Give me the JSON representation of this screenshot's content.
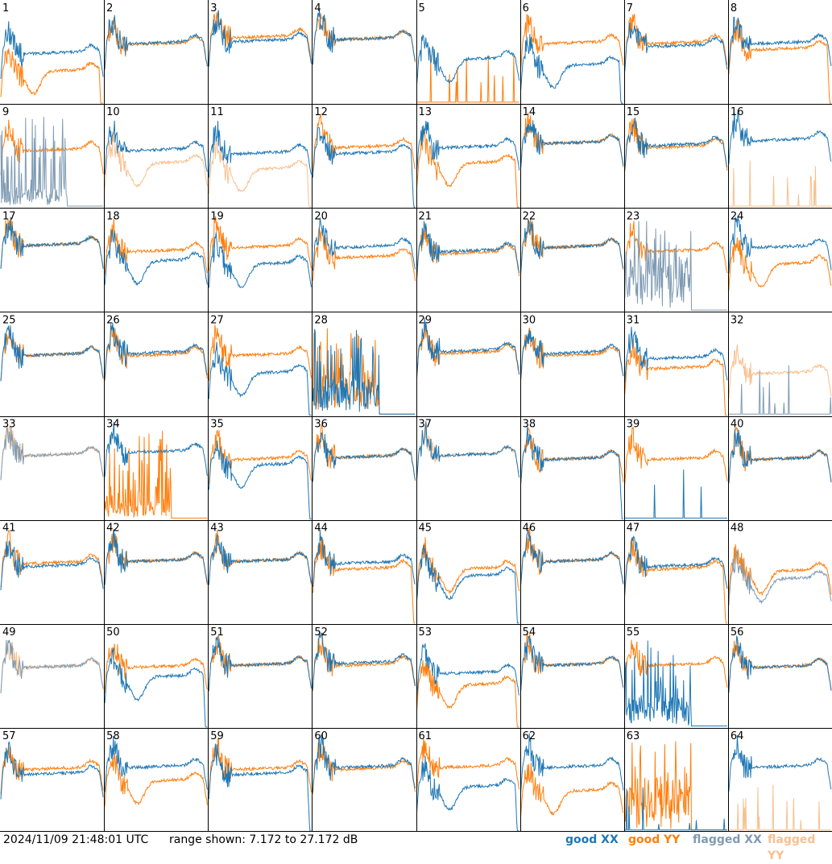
{
  "footer": {
    "timestamp": "2024/11/09 21:48:01 UTC",
    "range_text": "range shown: 7.172 to 27.172 dB"
  },
  "legend": {
    "good_xx": "good XX",
    "good_yy": "good YY",
    "flagged_xx": "flagged XX",
    "flagged_yy": "flagged YY"
  },
  "colors": {
    "good_xx": "#1f77b4",
    "good_yy": "#ff7f0e",
    "flagged_xx": "#7f9bb3",
    "flagged_yy": "#f7c08f",
    "grid_line": "#000000"
  },
  "chart_data": {
    "type": "line",
    "grid": "8x8 small multiples",
    "ylim": [
      7.172,
      27.172
    ],
    "y_unit": "dB",
    "panels": [
      {
        "id": 1,
        "xx": {
          "shape": "normal",
          "level": 0.48,
          "status": "good"
        },
        "yy": {
          "shape": "dip",
          "level": 0.3,
          "status": "good",
          "end": "dropoff"
        }
      },
      {
        "id": 2,
        "xx": {
          "shape": "normal",
          "level": 0.58,
          "status": "good"
        },
        "yy": {
          "shape": "normal",
          "level": 0.57,
          "status": "good"
        }
      },
      {
        "id": 3,
        "xx": {
          "shape": "normal",
          "level": 0.6,
          "status": "good"
        },
        "yy": {
          "shape": "normal",
          "level": 0.64,
          "status": "good"
        }
      },
      {
        "id": 4,
        "xx": {
          "shape": "normal",
          "level": 0.62,
          "status": "good"
        },
        "yy": {
          "shape": "normal",
          "level": 0.62,
          "status": "good"
        }
      },
      {
        "id": 5,
        "xx": {
          "shape": "dip",
          "level": 0.42,
          "status": "good"
        },
        "yy": {
          "shape": "dead",
          "level": 0.02,
          "status": "good"
        }
      },
      {
        "id": 6,
        "xx": {
          "shape": "dip",
          "level": 0.36,
          "status": "good",
          "end": "dropoff"
        },
        "yy": {
          "shape": "normal",
          "level": 0.58,
          "status": "good"
        }
      },
      {
        "id": 7,
        "xx": {
          "shape": "normal",
          "level": 0.55,
          "status": "good"
        },
        "yy": {
          "shape": "normal",
          "level": 0.58,
          "status": "good"
        }
      },
      {
        "id": 8,
        "xx": {
          "shape": "normal",
          "level": 0.58,
          "status": "good"
        },
        "yy": {
          "shape": "normal",
          "level": 0.52,
          "status": "good",
          "end": "dropoff"
        }
      },
      {
        "id": 9,
        "xx": {
          "shape": "noisy",
          "level": 0.1,
          "status": "flagged"
        },
        "yy": {
          "shape": "normal",
          "level": 0.55,
          "status": "good"
        }
      },
      {
        "id": 10,
        "xx": {
          "shape": "normal",
          "level": 0.55,
          "status": "good"
        },
        "yy": {
          "shape": "dip",
          "level": 0.42,
          "status": "flagged"
        }
      },
      {
        "id": 11,
        "xx": {
          "shape": "normal",
          "level": 0.52,
          "status": "good"
        },
        "yy": {
          "shape": "dip",
          "level": 0.36,
          "status": "flagged",
          "end": "dropoff"
        }
      },
      {
        "id": 12,
        "xx": {
          "shape": "normal",
          "level": 0.52,
          "status": "good",
          "end": "dropoff"
        },
        "yy": {
          "shape": "normal",
          "level": 0.58,
          "status": "good"
        }
      },
      {
        "id": 13,
        "xx": {
          "shape": "normal",
          "level": 0.58,
          "status": "good"
        },
        "yy": {
          "shape": "dip",
          "level": 0.42,
          "status": "good",
          "end": "dropoff"
        }
      },
      {
        "id": 14,
        "xx": {
          "shape": "normal",
          "level": 0.62,
          "status": "good"
        },
        "yy": {
          "shape": "normal",
          "level": 0.62,
          "status": "good"
        }
      },
      {
        "id": 15,
        "xx": {
          "shape": "normal",
          "level": 0.6,
          "status": "good"
        },
        "yy": {
          "shape": "normal",
          "level": 0.58,
          "status": "good"
        }
      },
      {
        "id": 16,
        "xx": {
          "shape": "normal",
          "level": 0.65,
          "status": "good"
        },
        "yy": {
          "shape": "dead",
          "level": 0.02,
          "status": "flagged"
        }
      },
      {
        "id": 17,
        "xx": {
          "shape": "normal",
          "level": 0.64,
          "status": "good"
        },
        "yy": {
          "shape": "normal",
          "level": 0.64,
          "status": "good"
        }
      },
      {
        "id": 18,
        "xx": {
          "shape": "dip",
          "level": 0.48,
          "status": "good"
        },
        "yy": {
          "shape": "normal",
          "level": 0.58,
          "status": "good"
        }
      },
      {
        "id": 19,
        "xx": {
          "shape": "dip",
          "level": 0.45,
          "status": "good"
        },
        "yy": {
          "shape": "normal",
          "level": 0.62,
          "status": "good"
        }
      },
      {
        "id": 20,
        "xx": {
          "shape": "normal",
          "level": 0.62,
          "status": "good"
        },
        "yy": {
          "shape": "normal",
          "level": 0.52,
          "status": "good"
        }
      },
      {
        "id": 21,
        "xx": {
          "shape": "normal",
          "level": 0.58,
          "status": "good"
        },
        "yy": {
          "shape": "normal",
          "level": 0.56,
          "status": "good"
        }
      },
      {
        "id": 22,
        "xx": {
          "shape": "normal",
          "level": 0.62,
          "status": "good"
        },
        "yy": {
          "shape": "normal",
          "level": 0.62,
          "status": "good"
        }
      },
      {
        "id": 23,
        "xx": {
          "shape": "noisy",
          "level": 0.35,
          "status": "flagged"
        },
        "yy": {
          "shape": "normal",
          "level": 0.58,
          "status": "good"
        }
      },
      {
        "id": 24,
        "xx": {
          "shape": "normal",
          "level": 0.62,
          "status": "good"
        },
        "yy": {
          "shape": "dip",
          "level": 0.45,
          "status": "good"
        }
      },
      {
        "id": 25,
        "xx": {
          "shape": "normal",
          "level": 0.58,
          "status": "good"
        },
        "yy": {
          "shape": "normal",
          "level": 0.58,
          "status": "good"
        }
      },
      {
        "id": 26,
        "xx": {
          "shape": "normal",
          "level": 0.6,
          "status": "good"
        },
        "yy": {
          "shape": "normal",
          "level": 0.58,
          "status": "good"
        }
      },
      {
        "id": 27,
        "xx": {
          "shape": "dip",
          "level": 0.4,
          "status": "good",
          "end": "dropoff"
        },
        "yy": {
          "shape": "normal",
          "level": 0.58,
          "status": "good"
        }
      },
      {
        "id": 28,
        "xx": {
          "shape": "noisy",
          "level": 0.2,
          "status": "good"
        },
        "yy": {
          "shape": "noisy",
          "level": 0.25,
          "status": "good"
        }
      },
      {
        "id": 29,
        "xx": {
          "shape": "normal",
          "level": 0.62,
          "status": "good"
        },
        "yy": {
          "shape": "normal",
          "level": 0.6,
          "status": "good"
        }
      },
      {
        "id": 30,
        "xx": {
          "shape": "normal",
          "level": 0.6,
          "status": "good"
        },
        "yy": {
          "shape": "normal",
          "level": 0.58,
          "status": "good"
        }
      },
      {
        "id": 31,
        "xx": {
          "shape": "normal",
          "level": 0.55,
          "status": "good"
        },
        "yy": {
          "shape": "normal",
          "level": 0.45,
          "status": "good",
          "end": "dropoff"
        }
      },
      {
        "id": 32,
        "xx": {
          "shape": "dead",
          "level": 0.02,
          "status": "flagged"
        },
        "yy": {
          "shape": "normal",
          "level": 0.4,
          "status": "flagged"
        }
      },
      {
        "id": 33,
        "xx": {
          "shape": "normal",
          "level": 0.62,
          "status": "flagged"
        },
        "yy": {
          "shape": "normal",
          "level": 0.62,
          "status": "flagged"
        }
      },
      {
        "id": 34,
        "xx": {
          "shape": "normal",
          "level": 0.65,
          "status": "good"
        },
        "yy": {
          "shape": "noisy",
          "level": 0.1,
          "status": "good"
        }
      },
      {
        "id": 35,
        "xx": {
          "shape": "dip",
          "level": 0.52,
          "status": "good",
          "end": "dropoff"
        },
        "yy": {
          "shape": "normal",
          "level": 0.58,
          "status": "good"
        }
      },
      {
        "id": 36,
        "xx": {
          "shape": "normal",
          "level": 0.6,
          "status": "good"
        },
        "yy": {
          "shape": "normal",
          "level": 0.6,
          "status": "good"
        }
      },
      {
        "id": 37,
        "xx": {
          "shape": "normal",
          "level": 0.62,
          "status": "good"
        },
        "yy": {
          "shape": "normal",
          "level": 0.62,
          "status": "flagged"
        }
      },
      {
        "id": 38,
        "xx": {
          "shape": "normal",
          "level": 0.58,
          "status": "good",
          "end": "dropoff"
        },
        "yy": {
          "shape": "normal",
          "level": 0.58,
          "status": "good"
        }
      },
      {
        "id": 39,
        "xx": {
          "shape": "dead",
          "level": 0.02,
          "status": "good"
        },
        "yy": {
          "shape": "normal",
          "level": 0.58,
          "status": "good"
        }
      },
      {
        "id": 40,
        "xx": {
          "shape": "normal",
          "level": 0.58,
          "status": "good"
        },
        "yy": {
          "shape": "normal",
          "level": 0.58,
          "status": "good"
        }
      },
      {
        "id": 41,
        "xx": {
          "shape": "normal",
          "level": 0.55,
          "status": "good"
        },
        "yy": {
          "shape": "normal",
          "level": 0.58,
          "status": "good"
        }
      },
      {
        "id": 42,
        "xx": {
          "shape": "normal",
          "level": 0.6,
          "status": "good"
        },
        "yy": {
          "shape": "normal",
          "level": 0.6,
          "status": "good"
        }
      },
      {
        "id": 43,
        "xx": {
          "shape": "normal",
          "level": 0.6,
          "status": "good"
        },
        "yy": {
          "shape": "normal",
          "level": 0.6,
          "status": "good"
        }
      },
      {
        "id": 44,
        "xx": {
          "shape": "normal",
          "level": 0.58,
          "status": "good"
        },
        "yy": {
          "shape": "normal",
          "level": 0.52,
          "status": "good",
          "end": "dropoff"
        }
      },
      {
        "id": 45,
        "xx": {
          "shape": "dip",
          "level": 0.45,
          "status": "good",
          "end": "dropoff"
        },
        "yy": {
          "shape": "dip",
          "level": 0.52,
          "status": "good"
        }
      },
      {
        "id": 46,
        "xx": {
          "shape": "normal",
          "level": 0.6,
          "status": "good"
        },
        "yy": {
          "shape": "normal",
          "level": 0.6,
          "status": "good"
        }
      },
      {
        "id": 47,
        "xx": {
          "shape": "normal",
          "level": 0.55,
          "status": "good"
        },
        "yy": {
          "shape": "normal",
          "level": 0.52,
          "status": "good",
          "end": "dropoff"
        }
      },
      {
        "id": 48,
        "xx": {
          "shape": "dip",
          "level": 0.42,
          "status": "flagged"
        },
        "yy": {
          "shape": "dip",
          "level": 0.5,
          "status": "good"
        }
      },
      {
        "id": 49,
        "xx": {
          "shape": "normal",
          "level": 0.58,
          "status": "flagged"
        },
        "yy": {
          "shape": "normal",
          "level": 0.58,
          "status": "flagged"
        }
      },
      {
        "id": 50,
        "xx": {
          "shape": "dip",
          "level": 0.48,
          "status": "good",
          "end": "dropoff"
        },
        "yy": {
          "shape": "normal",
          "level": 0.58,
          "status": "good"
        }
      },
      {
        "id": 51,
        "xx": {
          "shape": "normal",
          "level": 0.6,
          "status": "good"
        },
        "yy": {
          "shape": "normal",
          "level": 0.6,
          "status": "good"
        }
      },
      {
        "id": 52,
        "xx": {
          "shape": "normal",
          "level": 0.62,
          "status": "good"
        },
        "yy": {
          "shape": "normal",
          "level": 0.6,
          "status": "good"
        }
      },
      {
        "id": 53,
        "xx": {
          "shape": "normal",
          "level": 0.52,
          "status": "good"
        },
        "yy": {
          "shape": "dip",
          "level": 0.4,
          "status": "good",
          "end": "dropoff"
        }
      },
      {
        "id": 54,
        "xx": {
          "shape": "normal",
          "level": 0.6,
          "status": "good"
        },
        "yy": {
          "shape": "normal",
          "level": 0.6,
          "status": "good"
        }
      },
      {
        "id": 55,
        "xx": {
          "shape": "noisy",
          "level": 0.18,
          "status": "good"
        },
        "yy": {
          "shape": "normal",
          "level": 0.6,
          "status": "good"
        }
      },
      {
        "id": 56,
        "xx": {
          "shape": "normal",
          "level": 0.58,
          "status": "good"
        },
        "yy": {
          "shape": "normal",
          "level": 0.58,
          "status": "good"
        }
      },
      {
        "id": 57,
        "xx": {
          "shape": "normal",
          "level": 0.55,
          "status": "good"
        },
        "yy": {
          "shape": "normal",
          "level": 0.6,
          "status": "good"
        }
      },
      {
        "id": 58,
        "xx": {
          "shape": "normal",
          "level": 0.62,
          "status": "good"
        },
        "yy": {
          "shape": "dip",
          "level": 0.48,
          "status": "good"
        }
      },
      {
        "id": 59,
        "xx": {
          "shape": "normal",
          "level": 0.55,
          "status": "good",
          "end": "dropoff"
        },
        "yy": {
          "shape": "normal",
          "level": 0.6,
          "status": "good"
        }
      },
      {
        "id": 60,
        "xx": {
          "shape": "normal",
          "level": 0.62,
          "status": "good"
        },
        "yy": {
          "shape": "normal",
          "level": 0.6,
          "status": "good"
        }
      },
      {
        "id": 61,
        "xx": {
          "shape": "dip",
          "level": 0.42,
          "status": "good",
          "end": "dropoff"
        },
        "yy": {
          "shape": "normal",
          "level": 0.62,
          "status": "good"
        }
      },
      {
        "id": 62,
        "xx": {
          "shape": "normal",
          "level": 0.62,
          "status": "good"
        },
        "yy": {
          "shape": "dip",
          "level": 0.38,
          "status": "good"
        }
      },
      {
        "id": 63,
        "xx": {
          "shape": "dead",
          "level": 0.02,
          "status": "good"
        },
        "yy": {
          "shape": "noisy",
          "level": 0.3,
          "status": "good"
        }
      },
      {
        "id": 64,
        "xx": {
          "shape": "normal",
          "level": 0.62,
          "status": "good"
        },
        "yy": {
          "shape": "dead",
          "level": 0.02,
          "status": "flagged"
        }
      }
    ]
  }
}
